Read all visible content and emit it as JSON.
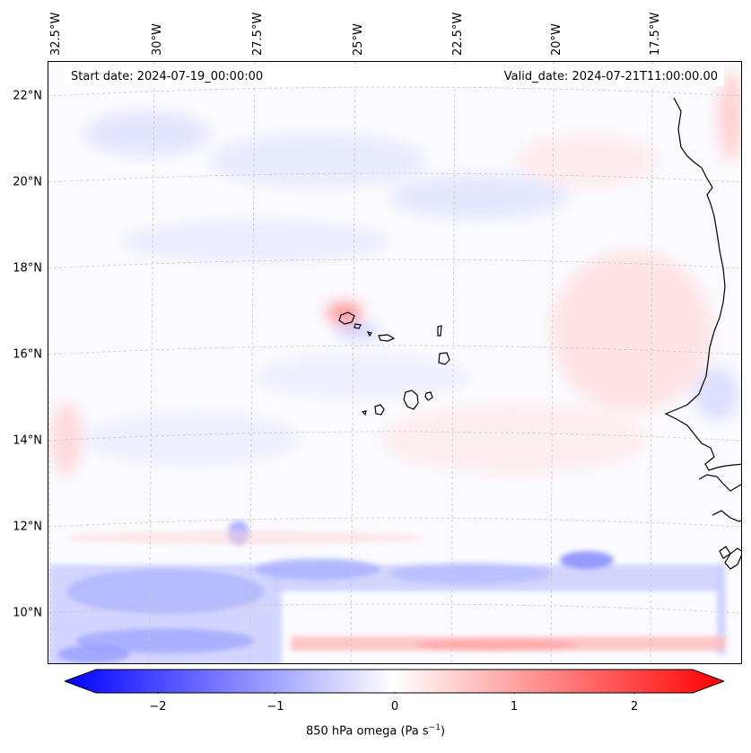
{
  "header": {
    "start_date": "Start date: 2024-07-19_00:00:00",
    "valid_date": "Valid_date: 2024-07-21T11:00:00.00"
  },
  "map": {
    "lon_labels": [
      "32.5°W",
      "30°W",
      "27.5°W",
      "25°W",
      "22.5°W",
      "20°W",
      "17.5°W"
    ],
    "lat_labels": [
      "22°N",
      "20°N",
      "18°N",
      "16°N",
      "14°N",
      "12°N",
      "10°N"
    ],
    "field": "850 hPa omega",
    "gridlines": true,
    "coastlines": true
  },
  "colorbar": {
    "ticks": [
      "−2",
      "−1",
      "0",
      "1",
      "2"
    ],
    "label_main": "850 hPa omega (Pa s",
    "label_exp": "−1",
    "label_close": ")",
    "range": [
      -2.5,
      2.5
    ],
    "colors": {
      "negative": "#0000ff",
      "zero": "#ffffff",
      "positive": "#ff0000"
    },
    "extend": "both"
  }
}
